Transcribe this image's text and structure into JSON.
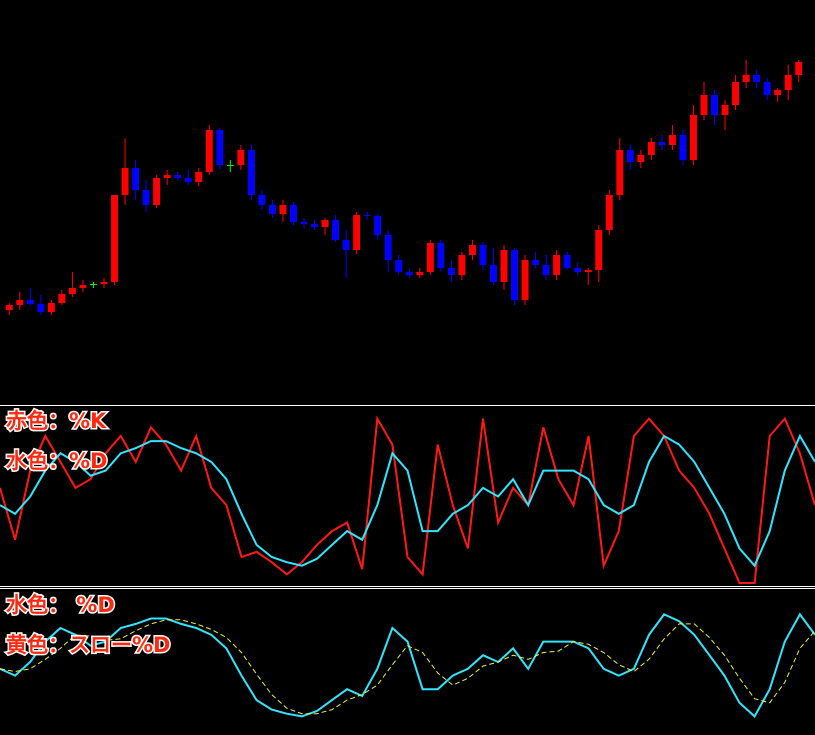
{
  "chart_data": [
    {
      "type": "candlestick",
      "up_color": "#ff0000",
      "down_color": "#0000ff",
      "doji_color": "#00ff00",
      "ylim": [
        0,
        400
      ],
      "open": [
        90,
        95,
        100,
        96,
        88,
        97,
        106,
        112,
        116,
        116,
        118,
        205,
        232,
        210,
        195,
        222,
        225,
        222,
        218,
        228,
        270,
        235,
        235,
        250,
        205,
        195,
        186,
        195,
        178,
        176,
        173,
        180,
        160,
        150,
        185,
        184,
        165,
        140,
        128,
        125,
        128,
        157,
        132,
        125,
        145,
        155,
        135,
        118,
        150,
        100,
        140,
        135,
        125,
        145,
        132,
        128,
        130,
        170,
        205,
        250,
        238,
        245,
        258,
        255,
        265,
        240,
        285,
        305,
        285,
        295,
        318,
        325,
        318,
        305,
        310,
        325
      ],
      "high": [
        97,
        108,
        112,
        105,
        100,
        110,
        128,
        120,
        118,
        122,
        205,
        262,
        240,
        220,
        225,
        230,
        228,
        230,
        232,
        275,
        272,
        240,
        255,
        255,
        210,
        200,
        200,
        198,
        182,
        180,
        182,
        185,
        170,
        188,
        188,
        186,
        170,
        145,
        132,
        132,
        160,
        160,
        140,
        148,
        160,
        158,
        152,
        155,
        152,
        145,
        148,
        145,
        150,
        148,
        138,
        132,
        175,
        210,
        262,
        255,
        250,
        262,
        265,
        275,
        270,
        295,
        318,
        310,
        300,
        325,
        340,
        330,
        322,
        312,
        335,
        340
      ],
      "low": [
        85,
        90,
        94,
        85,
        85,
        95,
        103,
        108,
        112,
        112,
        115,
        195,
        200,
        188,
        192,
        215,
        220,
        215,
        214,
        225,
        230,
        228,
        230,
        200,
        190,
        182,
        178,
        175,
        172,
        170,
        165,
        158,
        122,
        146,
        180,
        160,
        128,
        125,
        122,
        122,
        125,
        128,
        118,
        120,
        140,
        130,
        115,
        110,
        95,
        95,
        132,
        120,
        120,
        130,
        125,
        115,
        118,
        165,
        200,
        230,
        232,
        240,
        250,
        250,
        235,
        235,
        280,
        275,
        270,
        290,
        312,
        312,
        300,
        298,
        300,
        318
      ],
      "close": [
        95,
        100,
        96,
        88,
        97,
        106,
        112,
        115,
        116,
        118,
        205,
        232,
        210,
        195,
        222,
        225,
        222,
        218,
        228,
        270,
        235,
        235,
        250,
        205,
        195,
        186,
        195,
        178,
        176,
        173,
        180,
        160,
        150,
        185,
        184,
        165,
        140,
        128,
        125,
        128,
        157,
        132,
        125,
        145,
        155,
        135,
        118,
        150,
        100,
        140,
        135,
        125,
        145,
        132,
        128,
        130,
        170,
        205,
        250,
        238,
        245,
        258,
        255,
        265,
        240,
        285,
        305,
        285,
        295,
        318,
        325,
        318,
        305,
        310,
        325,
        338
      ]
    },
    {
      "type": "line",
      "ylim": [
        0,
        100
      ],
      "annotations": [
        "赤色：%K",
        "水色：%D"
      ],
      "series": [
        {
          "name": "%K",
          "color": "#ff1a1a",
          "values": [
            55,
            25,
            65,
            85,
            70,
            55,
            60,
            75,
            85,
            70,
            90,
            80,
            65,
            85,
            55,
            45,
            15,
            18,
            12,
            5,
            12,
            22,
            30,
            35,
            8,
            95,
            80,
            15,
            5,
            80,
            45,
            20,
            95,
            35,
            55,
            45,
            90,
            60,
            45,
            85,
            10,
            30,
            85,
            95,
            85,
            65,
            55,
            40,
            20,
            0,
            0,
            85,
            95,
            75,
            45
          ]
        },
        {
          "name": "%D",
          "color": "#33e5ff",
          "values": [
            45,
            40,
            50,
            65,
            75,
            70,
            62,
            65,
            75,
            78,
            82,
            82,
            78,
            75,
            70,
            60,
            40,
            22,
            15,
            12,
            10,
            14,
            22,
            30,
            25,
            45,
            75,
            65,
            30,
            30,
            40,
            45,
            55,
            50,
            60,
            45,
            65,
            65,
            65,
            60,
            45,
            40,
            45,
            70,
            85,
            80,
            70,
            55,
            40,
            20,
            10,
            30,
            65,
            85,
            70
          ]
        }
      ]
    },
    {
      "type": "line",
      "ylim": [
        0,
        100
      ],
      "annotations": [
        "水色： %D",
        "黄色：スロー%D"
      ],
      "series": [
        {
          "name": "%D",
          "color": "#33e5ff",
          "values": [
            45,
            40,
            50,
            65,
            75,
            70,
            62,
            65,
            75,
            78,
            82,
            82,
            78,
            75,
            70,
            60,
            40,
            22,
            15,
            12,
            10,
            14,
            22,
            30,
            25,
            45,
            75,
            65,
            30,
            30,
            40,
            45,
            55,
            50,
            60,
            45,
            65,
            65,
            65,
            60,
            45,
            40,
            45,
            70,
            85,
            80,
            70,
            55,
            40,
            20,
            10,
            30,
            65,
            85,
            70
          ]
        },
        {
          "name": "スロー%D",
          "color": "#f0f040",
          "dashed": true,
          "values": [
            45,
            43,
            45,
            52,
            60,
            70,
            69,
            66,
            67,
            73,
            78,
            81,
            81,
            78,
            74,
            68,
            57,
            41,
            26,
            16,
            12,
            12,
            15,
            22,
            26,
            33,
            48,
            62,
            57,
            42,
            33,
            38,
            47,
            50,
            55,
            52,
            57,
            58,
            65,
            63,
            57,
            48,
            43,
            52,
            67,
            78,
            78,
            68,
            55,
            38,
            23,
            20,
            35,
            60,
            73
          ]
        }
      ]
    }
  ]
}
